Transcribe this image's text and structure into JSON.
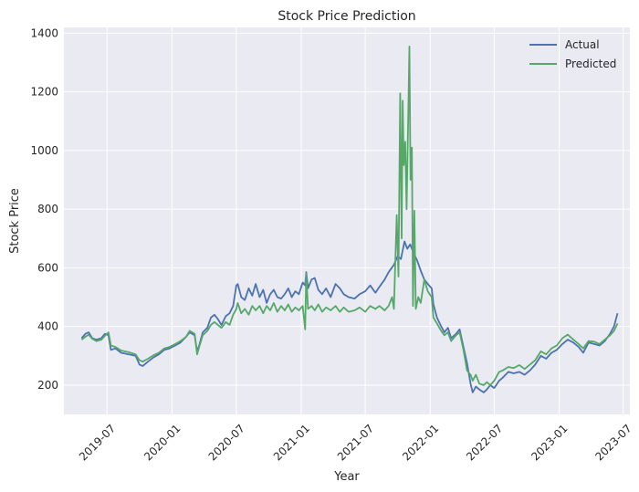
{
  "chart_data": {
    "type": "line",
    "title": "Stock Price Prediction",
    "xlabel": "Year",
    "ylabel": "Stock Price",
    "xlim": [
      "2019-03-01",
      "2023-07-20"
    ],
    "ylim": [
      100,
      1420
    ],
    "grid": true,
    "legend_position": "top-right",
    "x_ticks": [
      "2019-07",
      "2020-01",
      "2020-07",
      "2021-01",
      "2021-07",
      "2022-01",
      "2022-07",
      "2023-01",
      "2023-07"
    ],
    "y_ticks": [
      200,
      400,
      600,
      800,
      1000,
      1200,
      1400
    ],
    "series": [
      {
        "name": "Actual",
        "color": "#4c72b0",
        "points": [
          [
            "2019-04-20",
            360
          ],
          [
            "2019-05-01",
            375
          ],
          [
            "2019-05-10",
            380
          ],
          [
            "2019-05-20",
            360
          ],
          [
            "2019-06-01",
            355
          ],
          [
            "2019-06-15",
            360
          ],
          [
            "2019-06-25",
            375
          ],
          [
            "2019-07-05",
            370
          ],
          [
            "2019-07-12",
            320
          ],
          [
            "2019-07-25",
            325
          ],
          [
            "2019-08-10",
            310
          ],
          [
            "2019-09-01",
            305
          ],
          [
            "2019-09-20",
            300
          ],
          [
            "2019-10-01",
            270
          ],
          [
            "2019-10-10",
            265
          ],
          [
            "2019-10-25",
            280
          ],
          [
            "2019-11-10",
            295
          ],
          [
            "2019-11-25",
            305
          ],
          [
            "2019-12-10",
            320
          ],
          [
            "2019-12-25",
            325
          ],
          [
            "2020-01-10",
            335
          ],
          [
            "2020-01-25",
            345
          ],
          [
            "2020-02-10",
            365
          ],
          [
            "2020-02-20",
            380
          ],
          [
            "2020-03-05",
            370
          ],
          [
            "2020-03-12",
            315
          ],
          [
            "2020-03-18",
            335
          ],
          [
            "2020-03-28",
            380
          ],
          [
            "2020-04-10",
            395
          ],
          [
            "2020-04-20",
            430
          ],
          [
            "2020-04-30",
            440
          ],
          [
            "2020-05-10",
            425
          ],
          [
            "2020-05-20",
            405
          ],
          [
            "2020-06-01",
            435
          ],
          [
            "2020-06-12",
            445
          ],
          [
            "2020-06-22",
            470
          ],
          [
            "2020-07-01",
            540
          ],
          [
            "2020-07-05",
            545
          ],
          [
            "2020-07-15",
            500
          ],
          [
            "2020-07-25",
            490
          ],
          [
            "2020-08-05",
            530
          ],
          [
            "2020-08-15",
            505
          ],
          [
            "2020-08-25",
            545
          ],
          [
            "2020-09-05",
            500
          ],
          [
            "2020-09-15",
            525
          ],
          [
            "2020-09-25",
            480
          ],
          [
            "2020-10-05",
            510
          ],
          [
            "2020-10-15",
            525
          ],
          [
            "2020-10-25",
            500
          ],
          [
            "2020-11-05",
            495
          ],
          [
            "2020-11-15",
            510
          ],
          [
            "2020-11-25",
            530
          ],
          [
            "2020-12-05",
            500
          ],
          [
            "2020-12-15",
            520
          ],
          [
            "2020-12-25",
            510
          ],
          [
            "2021-01-05",
            550
          ],
          [
            "2021-01-12",
            540
          ],
          [
            "2021-01-15",
            585
          ],
          [
            "2021-01-20",
            530
          ],
          [
            "2021-01-30",
            560
          ],
          [
            "2021-02-08",
            565
          ],
          [
            "2021-02-18",
            525
          ],
          [
            "2021-03-01",
            510
          ],
          [
            "2021-03-12",
            530
          ],
          [
            "2021-03-25",
            500
          ],
          [
            "2021-04-08",
            545
          ],
          [
            "2021-04-20",
            530
          ],
          [
            "2021-05-01",
            510
          ],
          [
            "2021-05-15",
            500
          ],
          [
            "2021-06-01",
            495
          ],
          [
            "2021-06-15",
            510
          ],
          [
            "2021-07-01",
            520
          ],
          [
            "2021-07-15",
            540
          ],
          [
            "2021-07-30",
            515
          ],
          [
            "2021-08-10",
            535
          ],
          [
            "2021-08-25",
            560
          ],
          [
            "2021-09-05",
            585
          ],
          [
            "2021-09-20",
            610
          ],
          [
            "2021-10-01",
            640
          ],
          [
            "2021-10-10",
            630
          ],
          [
            "2021-10-20",
            690
          ],
          [
            "2021-10-28",
            665
          ],
          [
            "2021-11-05",
            680
          ],
          [
            "2021-11-15",
            650
          ],
          [
            "2021-11-25",
            625
          ],
          [
            "2021-12-05",
            590
          ],
          [
            "2021-12-15",
            560
          ],
          [
            "2021-12-25",
            545
          ],
          [
            "2022-01-05",
            530
          ],
          [
            "2022-01-10",
            475
          ],
          [
            "2022-01-20",
            430
          ],
          [
            "2022-02-01",
            400
          ],
          [
            "2022-02-10",
            380
          ],
          [
            "2022-02-20",
            395
          ],
          [
            "2022-03-01",
            360
          ],
          [
            "2022-03-15",
            375
          ],
          [
            "2022-03-25",
            390
          ],
          [
            "2022-04-05",
            330
          ],
          [
            "2022-04-15",
            275
          ],
          [
            "2022-04-25",
            205
          ],
          [
            "2022-05-01",
            175
          ],
          [
            "2022-05-10",
            195
          ],
          [
            "2022-05-20",
            185
          ],
          [
            "2022-06-01",
            175
          ],
          [
            "2022-06-10",
            185
          ],
          [
            "2022-06-20",
            200
          ],
          [
            "2022-07-01",
            190
          ],
          [
            "2022-07-15",
            215
          ],
          [
            "2022-07-25",
            225
          ],
          [
            "2022-08-10",
            245
          ],
          [
            "2022-08-25",
            240
          ],
          [
            "2022-09-10",
            245
          ],
          [
            "2022-09-25",
            235
          ],
          [
            "2022-10-10",
            250
          ],
          [
            "2022-10-25",
            270
          ],
          [
            "2022-11-10",
            300
          ],
          [
            "2022-11-25",
            290
          ],
          [
            "2022-12-10",
            310
          ],
          [
            "2022-12-25",
            320
          ],
          [
            "2023-01-10",
            340
          ],
          [
            "2023-01-25",
            355
          ],
          [
            "2023-02-10",
            345
          ],
          [
            "2023-02-25",
            330
          ],
          [
            "2023-03-10",
            310
          ],
          [
            "2023-03-25",
            345
          ],
          [
            "2023-04-10",
            340
          ],
          [
            "2023-04-25",
            335
          ],
          [
            "2023-05-10",
            350
          ],
          [
            "2023-05-25",
            375
          ],
          [
            "2023-06-05",
            400
          ],
          [
            "2023-06-15",
            445
          ]
        ]
      },
      {
        "name": "Predicted",
        "color": "#55a868",
        "points": [
          [
            "2019-04-20",
            355
          ],
          [
            "2019-05-01",
            365
          ],
          [
            "2019-05-10",
            372
          ],
          [
            "2019-05-20",
            358
          ],
          [
            "2019-06-01",
            350
          ],
          [
            "2019-06-15",
            355
          ],
          [
            "2019-06-25",
            368
          ],
          [
            "2019-07-05",
            380
          ],
          [
            "2019-07-12",
            335
          ],
          [
            "2019-07-25",
            330
          ],
          [
            "2019-08-10",
            318
          ],
          [
            "2019-09-01",
            312
          ],
          [
            "2019-09-20",
            305
          ],
          [
            "2019-10-01",
            285
          ],
          [
            "2019-10-10",
            280
          ],
          [
            "2019-10-25",
            290
          ],
          [
            "2019-11-10",
            302
          ],
          [
            "2019-11-25",
            310
          ],
          [
            "2019-12-10",
            325
          ],
          [
            "2019-12-25",
            330
          ],
          [
            "2020-01-10",
            340
          ],
          [
            "2020-01-25",
            350
          ],
          [
            "2020-02-10",
            365
          ],
          [
            "2020-02-20",
            385
          ],
          [
            "2020-03-05",
            375
          ],
          [
            "2020-03-12",
            305
          ],
          [
            "2020-03-18",
            330
          ],
          [
            "2020-03-28",
            370
          ],
          [
            "2020-04-10",
            385
          ],
          [
            "2020-04-20",
            405
          ],
          [
            "2020-04-30",
            415
          ],
          [
            "2020-05-10",
            405
          ],
          [
            "2020-05-20",
            395
          ],
          [
            "2020-06-01",
            415
          ],
          [
            "2020-06-12",
            405
          ],
          [
            "2020-06-22",
            440
          ],
          [
            "2020-07-01",
            460
          ],
          [
            "2020-07-05",
            480
          ],
          [
            "2020-07-15",
            445
          ],
          [
            "2020-07-25",
            460
          ],
          [
            "2020-08-05",
            440
          ],
          [
            "2020-08-15",
            470
          ],
          [
            "2020-08-25",
            455
          ],
          [
            "2020-09-05",
            470
          ],
          [
            "2020-09-15",
            445
          ],
          [
            "2020-09-25",
            470
          ],
          [
            "2020-10-05",
            455
          ],
          [
            "2020-10-15",
            480
          ],
          [
            "2020-10-25",
            450
          ],
          [
            "2020-11-05",
            470
          ],
          [
            "2020-11-15",
            455
          ],
          [
            "2020-11-25",
            475
          ],
          [
            "2020-12-05",
            450
          ],
          [
            "2020-12-15",
            465
          ],
          [
            "2020-12-25",
            455
          ],
          [
            "2021-01-05",
            470
          ],
          [
            "2021-01-12",
            390
          ],
          [
            "2021-01-15",
            580
          ],
          [
            "2021-01-20",
            460
          ],
          [
            "2021-01-30",
            470
          ],
          [
            "2021-02-08",
            455
          ],
          [
            "2021-02-18",
            475
          ],
          [
            "2021-03-01",
            450
          ],
          [
            "2021-03-12",
            465
          ],
          [
            "2021-03-25",
            455
          ],
          [
            "2021-04-08",
            470
          ],
          [
            "2021-04-20",
            450
          ],
          [
            "2021-05-01",
            465
          ],
          [
            "2021-05-15",
            450
          ],
          [
            "2021-06-01",
            455
          ],
          [
            "2021-06-15",
            465
          ],
          [
            "2021-07-01",
            450
          ],
          [
            "2021-07-15",
            470
          ],
          [
            "2021-07-30",
            460
          ],
          [
            "2021-08-10",
            470
          ],
          [
            "2021-08-25",
            455
          ],
          [
            "2021-09-05",
            470
          ],
          [
            "2021-09-15",
            500
          ],
          [
            "2021-09-20",
            460
          ],
          [
            "2021-09-28",
            780
          ],
          [
            "2021-10-03",
            570
          ],
          [
            "2021-10-08",
            1195
          ],
          [
            "2021-10-12",
            700
          ],
          [
            "2021-10-15",
            1170
          ],
          [
            "2021-10-18",
            950
          ],
          [
            "2021-10-22",
            1030
          ],
          [
            "2021-10-26",
            800
          ],
          [
            "2021-10-30",
            1080
          ],
          [
            "2021-11-03",
            1355
          ],
          [
            "2021-11-06",
            900
          ],
          [
            "2021-11-10",
            1010
          ],
          [
            "2021-11-13",
            470
          ],
          [
            "2021-11-17",
            795
          ],
          [
            "2021-11-21",
            460
          ],
          [
            "2021-11-28",
            500
          ],
          [
            "2021-12-05",
            480
          ],
          [
            "2021-12-15",
            560
          ],
          [
            "2021-12-25",
            520
          ],
          [
            "2022-01-05",
            500
          ],
          [
            "2022-01-10",
            430
          ],
          [
            "2022-01-20",
            410
          ],
          [
            "2022-02-01",
            385
          ],
          [
            "2022-02-10",
            370
          ],
          [
            "2022-02-20",
            380
          ],
          [
            "2022-03-01",
            350
          ],
          [
            "2022-03-15",
            370
          ],
          [
            "2022-03-25",
            380
          ],
          [
            "2022-04-05",
            320
          ],
          [
            "2022-04-15",
            250
          ],
          [
            "2022-04-25",
            235
          ],
          [
            "2022-05-01",
            215
          ],
          [
            "2022-05-10",
            235
          ],
          [
            "2022-05-20",
            205
          ],
          [
            "2022-06-01",
            200
          ],
          [
            "2022-06-10",
            210
          ],
          [
            "2022-06-20",
            200
          ],
          [
            "2022-07-01",
            215
          ],
          [
            "2022-07-15",
            245
          ],
          [
            "2022-07-25",
            250
          ],
          [
            "2022-08-10",
            262
          ],
          [
            "2022-08-25",
            258
          ],
          [
            "2022-09-10",
            268
          ],
          [
            "2022-09-25",
            255
          ],
          [
            "2022-10-10",
            270
          ],
          [
            "2022-10-25",
            285
          ],
          [
            "2022-11-10",
            315
          ],
          [
            "2022-11-25",
            305
          ],
          [
            "2022-12-10",
            325
          ],
          [
            "2022-12-25",
            335
          ],
          [
            "2023-01-10",
            360
          ],
          [
            "2023-01-25",
            372
          ],
          [
            "2023-02-10",
            355
          ],
          [
            "2023-02-25",
            340
          ],
          [
            "2023-03-10",
            325
          ],
          [
            "2023-03-25",
            350
          ],
          [
            "2023-04-10",
            348
          ],
          [
            "2023-04-25",
            340
          ],
          [
            "2023-05-10",
            355
          ],
          [
            "2023-05-25",
            370
          ],
          [
            "2023-06-05",
            385
          ],
          [
            "2023-06-15",
            410
          ]
        ]
      }
    ]
  }
}
